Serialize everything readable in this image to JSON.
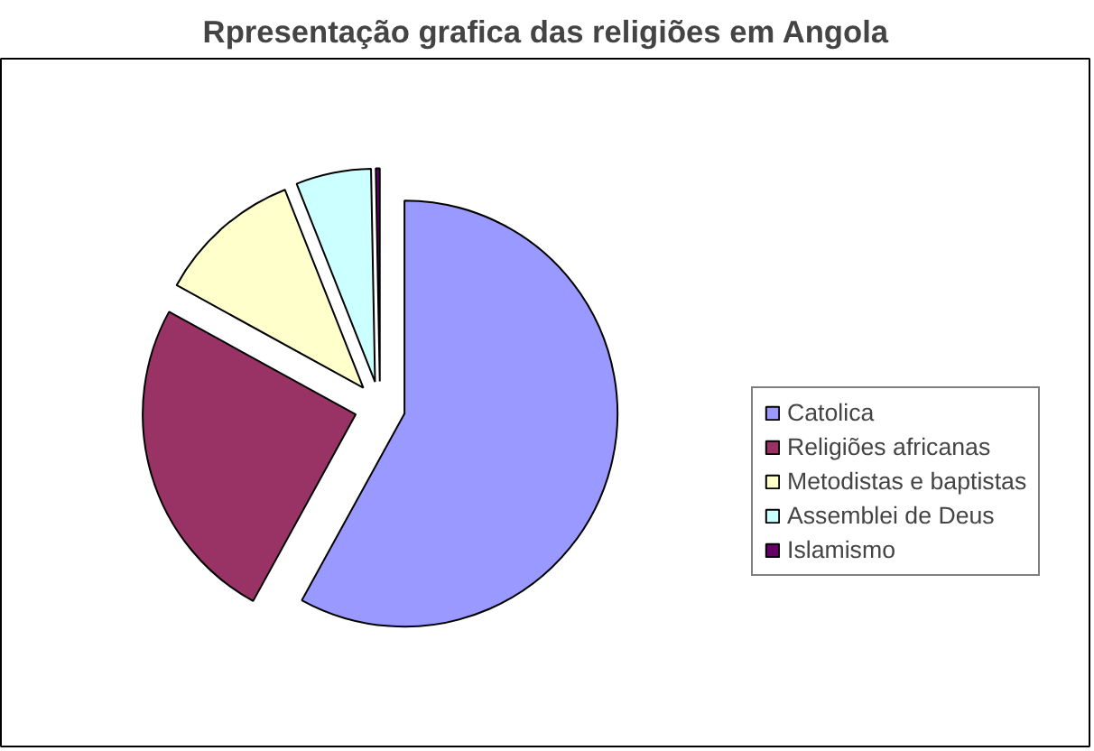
{
  "chart_data": {
    "type": "pie",
    "title": "Rpresentação grafica das religiões em Angola",
    "categories": [
      "Catolica",
      "Religiões africanas",
      "Metodistas e baptistas",
      "Assemblei de Deus",
      "Islamismo"
    ],
    "values": [
      58,
      25,
      11,
      5.7,
      0.3
    ],
    "colors": [
      "#9999ff",
      "#993366",
      "#ffffcc",
      "#ccffff",
      "#660066"
    ],
    "legend": "right"
  }
}
